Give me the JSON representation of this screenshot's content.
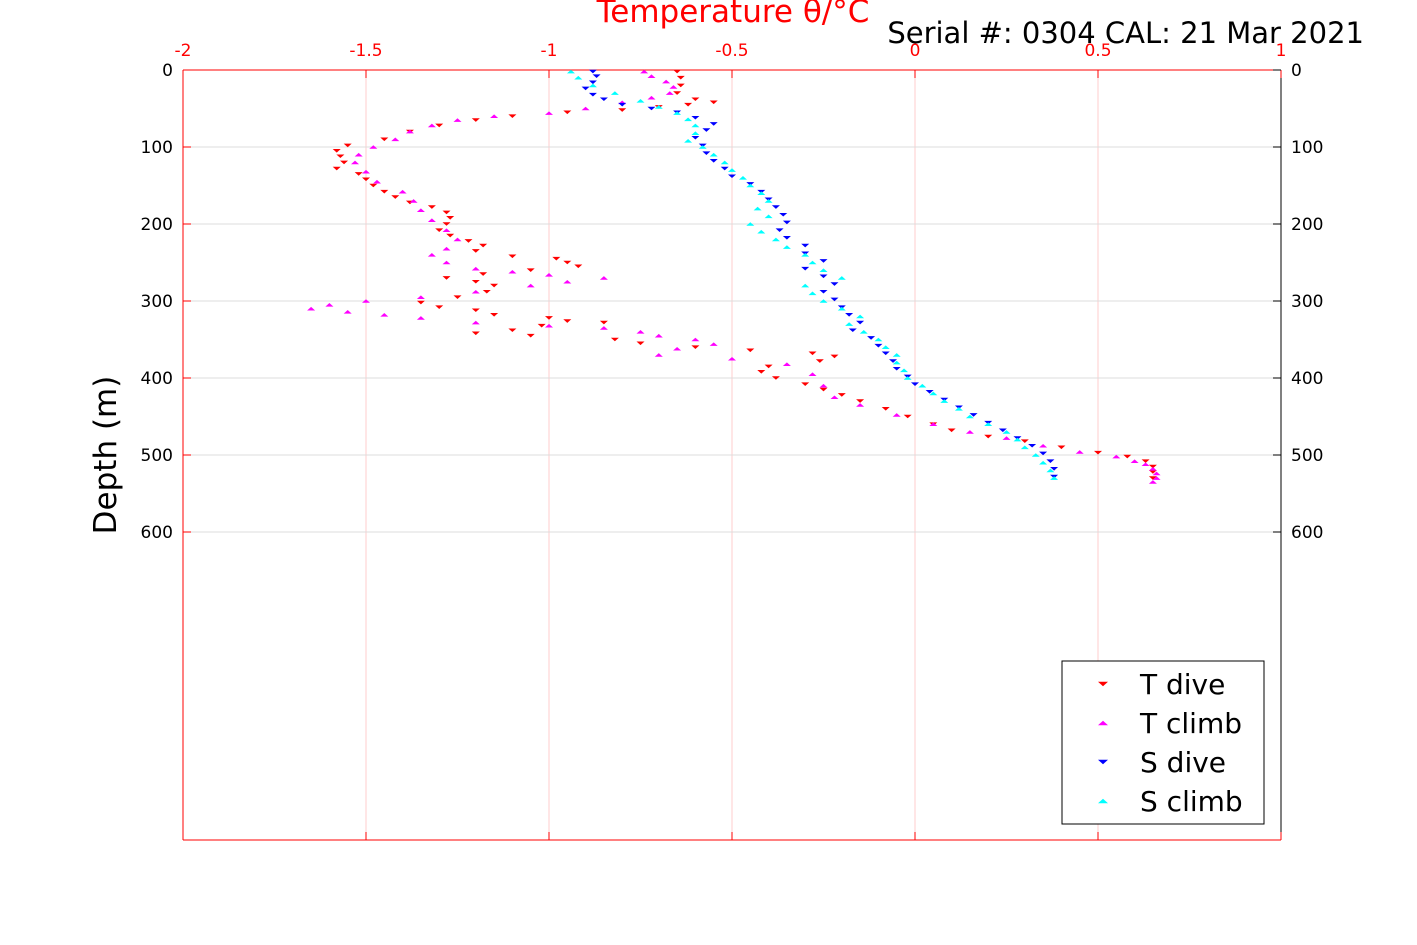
{
  "chart_data": {
    "type": "scatter",
    "title": "Serial #: 0304  CAL: 21 Mar 2021",
    "xlabel": "Temperature θ/°C",
    "ylabel": "Depth (m)",
    "xlim": [
      -2,
      1
    ],
    "ylim": [
      0,
      1000
    ],
    "y_reversed": true,
    "x_tick_labels": [
      "-2",
      "-1.5",
      "-1",
      "-0.5",
      "0",
      "0.5",
      "1"
    ],
    "y_tick_labels": [
      "0",
      "100",
      "200",
      "300",
      "400",
      "500",
      "600"
    ],
    "x_ticks": [
      -2,
      -1.5,
      -1,
      -0.5,
      0,
      0.5,
      1
    ],
    "y_ticks": [
      0,
      100,
      200,
      300,
      400,
      500,
      600
    ],
    "x_axis_position": "top",
    "grid": true,
    "legend_position": "bottom-right",
    "series": [
      {
        "name": "T dive",
        "color": "#ff0000",
        "marker": "triangle-down",
        "points": [
          [
            -0.65,
            2
          ],
          [
            -0.64,
            10
          ],
          [
            -0.64,
            20
          ],
          [
            -0.65,
            30
          ],
          [
            -0.6,
            38
          ],
          [
            -0.55,
            42
          ],
          [
            -0.62,
            45
          ],
          [
            -0.7,
            48
          ],
          [
            -0.8,
            52
          ],
          [
            -0.95,
            55
          ],
          [
            -1.1,
            60
          ],
          [
            -1.2,
            65
          ],
          [
            -1.3,
            72
          ],
          [
            -1.38,
            80
          ],
          [
            -1.45,
            90
          ],
          [
            -1.55,
            98
          ],
          [
            -1.58,
            105
          ],
          [
            -1.57,
            112
          ],
          [
            -1.56,
            120
          ],
          [
            -1.58,
            128
          ],
          [
            -1.52,
            135
          ],
          [
            -1.5,
            142
          ],
          [
            -1.48,
            150
          ],
          [
            -1.45,
            158
          ],
          [
            -1.42,
            165
          ],
          [
            -1.38,
            172
          ],
          [
            -1.32,
            178
          ],
          [
            -1.28,
            185
          ],
          [
            -1.27,
            192
          ],
          [
            -1.28,
            200
          ],
          [
            -1.3,
            208
          ],
          [
            -1.27,
            215
          ],
          [
            -1.22,
            222
          ],
          [
            -1.18,
            228
          ],
          [
            -1.2,
            235
          ],
          [
            -1.1,
            242
          ],
          [
            -0.98,
            245
          ],
          [
            -0.95,
            250
          ],
          [
            -0.92,
            255
          ],
          [
            -1.05,
            260
          ],
          [
            -1.18,
            265
          ],
          [
            -1.28,
            270
          ],
          [
            -1.2,
            275
          ],
          [
            -1.15,
            280
          ],
          [
            -1.17,
            288
          ],
          [
            -1.25,
            295
          ],
          [
            -1.35,
            302
          ],
          [
            -1.3,
            308
          ],
          [
            -1.2,
            312
          ],
          [
            -1.15,
            318
          ],
          [
            -1.0,
            322
          ],
          [
            -0.95,
            326
          ],
          [
            -0.85,
            328
          ],
          [
            -1.02,
            332
          ],
          [
            -1.1,
            338
          ],
          [
            -1.2,
            342
          ],
          [
            -1.05,
            345
          ],
          [
            -0.82,
            350
          ],
          [
            -0.75,
            355
          ],
          [
            -0.6,
            360
          ],
          [
            -0.45,
            364
          ],
          [
            -0.28,
            368
          ],
          [
            -0.22,
            372
          ],
          [
            -0.26,
            378
          ],
          [
            -0.4,
            385
          ],
          [
            -0.42,
            392
          ],
          [
            -0.38,
            400
          ],
          [
            -0.3,
            408
          ],
          [
            -0.25,
            415
          ],
          [
            -0.2,
            422
          ],
          [
            -0.15,
            430
          ],
          [
            -0.08,
            440
          ],
          [
            -0.02,
            450
          ],
          [
            0.05,
            460
          ],
          [
            0.1,
            468
          ],
          [
            0.2,
            476
          ],
          [
            0.3,
            482
          ],
          [
            0.4,
            490
          ],
          [
            0.5,
            497
          ],
          [
            0.58,
            502
          ],
          [
            0.63,
            508
          ],
          [
            0.65,
            515
          ],
          [
            0.65,
            522
          ],
          [
            0.65,
            530
          ]
        ]
      },
      {
        "name": "T climb",
        "color": "#ff00ff",
        "marker": "triangle-up",
        "points": [
          [
            -0.74,
            2
          ],
          [
            -0.72,
            8
          ],
          [
            -0.68,
            15
          ],
          [
            -0.66,
            22
          ],
          [
            -0.67,
            30
          ],
          [
            -0.72,
            36
          ],
          [
            -0.8,
            42
          ],
          [
            -0.9,
            50
          ],
          [
            -1.0,
            56
          ],
          [
            -1.15,
            60
          ],
          [
            -1.25,
            65
          ],
          [
            -1.32,
            72
          ],
          [
            -1.38,
            80
          ],
          [
            -1.42,
            90
          ],
          [
            -1.48,
            100
          ],
          [
            -1.52,
            110
          ],
          [
            -1.53,
            120
          ],
          [
            -1.5,
            132
          ],
          [
            -1.47,
            145
          ],
          [
            -1.4,
            158
          ],
          [
            -1.37,
            170
          ],
          [
            -1.35,
            182
          ],
          [
            -1.32,
            195
          ],
          [
            -1.28,
            208
          ],
          [
            -1.25,
            220
          ],
          [
            -1.28,
            232
          ],
          [
            -1.32,
            240
          ],
          [
            -1.28,
            250
          ],
          [
            -1.2,
            258
          ],
          [
            -1.1,
            262
          ],
          [
            -1.0,
            266
          ],
          [
            -0.85,
            270
          ],
          [
            -0.95,
            275
          ],
          [
            -1.05,
            280
          ],
          [
            -1.2,
            288
          ],
          [
            -1.35,
            295
          ],
          [
            -1.5,
            300
          ],
          [
            -1.6,
            305
          ],
          [
            -1.65,
            310
          ],
          [
            -1.55,
            314
          ],
          [
            -1.45,
            318
          ],
          [
            -1.35,
            322
          ],
          [
            -1.2,
            328
          ],
          [
            -1.0,
            332
          ],
          [
            -0.85,
            335
          ],
          [
            -0.75,
            340
          ],
          [
            -0.7,
            345
          ],
          [
            -0.6,
            350
          ],
          [
            -0.55,
            356
          ],
          [
            -0.65,
            362
          ],
          [
            -0.7,
            370
          ],
          [
            -0.5,
            375
          ],
          [
            -0.35,
            382
          ],
          [
            -0.28,
            395
          ],
          [
            -0.25,
            410
          ],
          [
            -0.22,
            425
          ],
          [
            -0.15,
            435
          ],
          [
            -0.05,
            448
          ],
          [
            0.05,
            460
          ],
          [
            0.15,
            470
          ],
          [
            0.25,
            478
          ],
          [
            0.35,
            488
          ],
          [
            0.45,
            496
          ],
          [
            0.55,
            502
          ],
          [
            0.6,
            508
          ],
          [
            0.63,
            512
          ],
          [
            0.65,
            518
          ],
          [
            0.66,
            524
          ],
          [
            0.66,
            530
          ],
          [
            0.65,
            535
          ]
        ]
      },
      {
        "name": "S dive",
        "color": "#0000ff",
        "marker": "triangle-down",
        "points": [
          [
            -0.88,
            2
          ],
          [
            -0.87,
            8
          ],
          [
            -0.88,
            16
          ],
          [
            -0.9,
            24
          ],
          [
            -0.88,
            32
          ],
          [
            -0.85,
            38
          ],
          [
            -0.8,
            45
          ],
          [
            -0.72,
            50
          ],
          [
            -0.65,
            55
          ],
          [
            -0.6,
            62
          ],
          [
            -0.55,
            70
          ],
          [
            -0.57,
            78
          ],
          [
            -0.6,
            88
          ],
          [
            -0.58,
            98
          ],
          [
            -0.57,
            108
          ],
          [
            -0.55,
            118
          ],
          [
            -0.52,
            128
          ],
          [
            -0.5,
            138
          ],
          [
            -0.45,
            148
          ],
          [
            -0.42,
            158
          ],
          [
            -0.4,
            168
          ],
          [
            -0.38,
            178
          ],
          [
            -0.36,
            188
          ],
          [
            -0.35,
            198
          ],
          [
            -0.37,
            208
          ],
          [
            -0.35,
            218
          ],
          [
            -0.3,
            228
          ],
          [
            -0.3,
            238
          ],
          [
            -0.25,
            248
          ],
          [
            -0.3,
            258
          ],
          [
            -0.25,
            268
          ],
          [
            -0.22,
            278
          ],
          [
            -0.25,
            288
          ],
          [
            -0.22,
            298
          ],
          [
            -0.2,
            308
          ],
          [
            -0.18,
            318
          ],
          [
            -0.15,
            328
          ],
          [
            -0.17,
            338
          ],
          [
            -0.12,
            348
          ],
          [
            -0.1,
            358
          ],
          [
            -0.08,
            368
          ],
          [
            -0.06,
            378
          ],
          [
            -0.05,
            388
          ],
          [
            -0.02,
            398
          ],
          [
            0.0,
            408
          ],
          [
            0.04,
            418
          ],
          [
            0.08,
            428
          ],
          [
            0.12,
            438
          ],
          [
            0.16,
            448
          ],
          [
            0.2,
            458
          ],
          [
            0.24,
            468
          ],
          [
            0.28,
            478
          ],
          [
            0.32,
            488
          ],
          [
            0.35,
            498
          ],
          [
            0.37,
            508
          ],
          [
            0.38,
            518
          ],
          [
            0.38,
            528
          ]
        ]
      },
      {
        "name": "S climb",
        "color": "#00ffff",
        "marker": "triangle-up",
        "points": [
          [
            -0.94,
            2
          ],
          [
            -0.92,
            10
          ],
          [
            -0.88,
            20
          ],
          [
            -0.82,
            30
          ],
          [
            -0.75,
            40
          ],
          [
            -0.7,
            48
          ],
          [
            -0.65,
            56
          ],
          [
            -0.62,
            64
          ],
          [
            -0.6,
            72
          ],
          [
            -0.6,
            82
          ],
          [
            -0.62,
            92
          ],
          [
            -0.58,
            100
          ],
          [
            -0.55,
            110
          ],
          [
            -0.52,
            120
          ],
          [
            -0.5,
            130
          ],
          [
            -0.47,
            140
          ],
          [
            -0.45,
            150
          ],
          [
            -0.42,
            160
          ],
          [
            -0.4,
            170
          ],
          [
            -0.43,
            180
          ],
          [
            -0.4,
            190
          ],
          [
            -0.45,
            200
          ],
          [
            -0.42,
            210
          ],
          [
            -0.38,
            220
          ],
          [
            -0.35,
            230
          ],
          [
            -0.3,
            240
          ],
          [
            -0.28,
            250
          ],
          [
            -0.25,
            260
          ],
          [
            -0.2,
            270
          ],
          [
            -0.3,
            280
          ],
          [
            -0.28,
            290
          ],
          [
            -0.25,
            300
          ],
          [
            -0.2,
            310
          ],
          [
            -0.15,
            320
          ],
          [
            -0.18,
            330
          ],
          [
            -0.14,
            340
          ],
          [
            -0.1,
            350
          ],
          [
            -0.08,
            360
          ],
          [
            -0.05,
            370
          ],
          [
            -0.05,
            380
          ],
          [
            -0.03,
            390
          ],
          [
            -0.02,
            400
          ],
          [
            0.02,
            410
          ],
          [
            0.05,
            420
          ],
          [
            0.08,
            430
          ],
          [
            0.12,
            440
          ],
          [
            0.15,
            450
          ],
          [
            0.2,
            460
          ],
          [
            0.25,
            470
          ],
          [
            0.28,
            480
          ],
          [
            0.3,
            490
          ],
          [
            0.33,
            500
          ],
          [
            0.35,
            510
          ],
          [
            0.37,
            520
          ],
          [
            0.38,
            530
          ]
        ]
      }
    ]
  },
  "colors": {
    "axis_top": "#ff0000",
    "axis_side": "#000000",
    "grid_vertical": "#ffcccc",
    "grid_horizontal": "#dddddd"
  }
}
